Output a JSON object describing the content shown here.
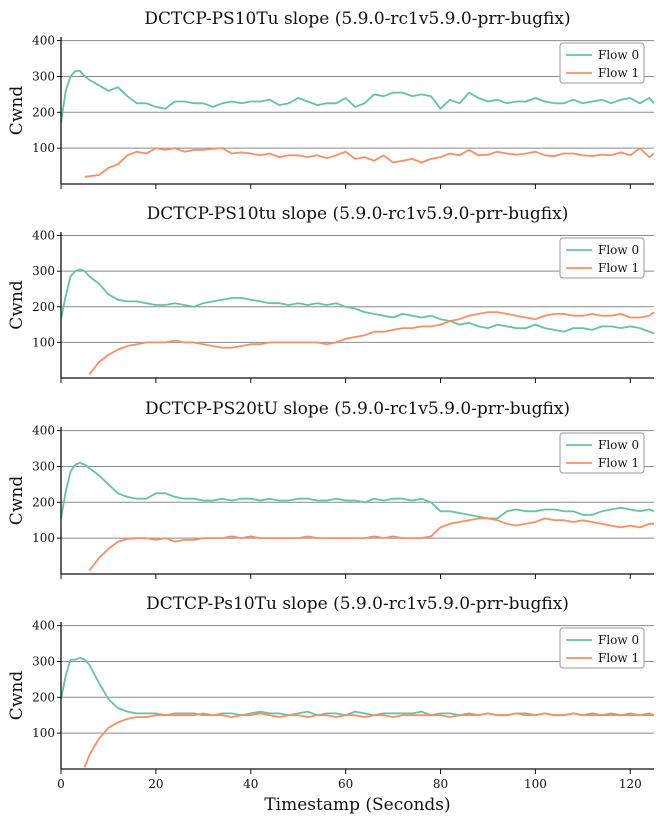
{
  "chart_data": [
    {
      "type": "line",
      "title": "DCTCP-PS10Tu slope (5.9.0-rc1v5.9.0-prr-bugfix)",
      "ylabel": "Cwnd",
      "xlim": [
        0,
        125
      ],
      "ylim": [
        0,
        410
      ],
      "yticks": [
        100,
        200,
        300,
        400
      ],
      "grid": "horizontal",
      "legend": "top-right",
      "series": [
        {
          "name": "Flow 0",
          "color": "#66c2a5",
          "x": [
            0,
            1,
            2,
            3,
            4,
            5,
            6,
            8,
            10,
            12,
            14,
            16,
            18,
            20,
            22,
            24,
            26,
            28,
            30,
            32,
            34,
            36,
            38,
            40,
            42,
            44,
            46,
            48,
            50,
            52,
            54,
            56,
            58,
            60,
            62,
            64,
            66,
            68,
            70,
            72,
            74,
            76,
            78,
            80,
            82,
            84,
            86,
            88,
            90,
            92,
            94,
            96,
            98,
            100,
            102,
            104,
            106,
            108,
            110,
            112,
            114,
            116,
            118,
            120,
            122,
            124,
            125
          ],
          "y": [
            170,
            260,
            300,
            315,
            316,
            300,
            290,
            275,
            260,
            270,
            245,
            225,
            225,
            215,
            210,
            230,
            230,
            225,
            225,
            215,
            225,
            230,
            225,
            230,
            230,
            235,
            220,
            225,
            240,
            230,
            220,
            225,
            225,
            240,
            215,
            225,
            250,
            245,
            255,
            255,
            245,
            250,
            245,
            210,
            235,
            225,
            255,
            240,
            230,
            235,
            225,
            230,
            230,
            240,
            230,
            225,
            225,
            235,
            225,
            230,
            235,
            225,
            235,
            240,
            225,
            240,
            225
          ]
        },
        {
          "name": "Flow 1",
          "color": "#fc8d62",
          "x": [
            5,
            8,
            10,
            12,
            14,
            16,
            18,
            20,
            22,
            24,
            26,
            28,
            30,
            32,
            34,
            36,
            38,
            40,
            42,
            44,
            46,
            48,
            50,
            52,
            54,
            56,
            58,
            60,
            62,
            64,
            66,
            68,
            70,
            72,
            74,
            76,
            78,
            80,
            82,
            84,
            86,
            88,
            90,
            92,
            94,
            96,
            98,
            100,
            102,
            104,
            106,
            108,
            110,
            112,
            114,
            116,
            118,
            120,
            122,
            124,
            125
          ],
          "y": [
            20,
            25,
            45,
            55,
            80,
            90,
            85,
            100,
            95,
            100,
            90,
            95,
            95,
            98,
            100,
            85,
            88,
            85,
            80,
            85,
            75,
            80,
            80,
            75,
            80,
            72,
            80,
            90,
            70,
            75,
            65,
            80,
            60,
            65,
            70,
            60,
            70,
            75,
            85,
            80,
            95,
            80,
            82,
            90,
            85,
            82,
            85,
            90,
            80,
            78,
            85,
            85,
            80,
            78,
            82,
            80,
            88,
            80,
            100,
            75,
            85
          ]
        }
      ]
    },
    {
      "type": "line",
      "title": "DCTCP-PS10tu slope (5.9.0-rc1v5.9.0-prr-bugfix)",
      "ylabel": "Cwnd",
      "xlim": [
        0,
        125
      ],
      "ylim": [
        0,
        410
      ],
      "yticks": [
        100,
        200,
        300,
        400
      ],
      "grid": "horizontal",
      "legend": "top-right",
      "series": [
        {
          "name": "Flow 0",
          "color": "#66c2a5",
          "x": [
            0,
            1,
            2,
            3,
            4,
            5,
            6,
            8,
            10,
            12,
            14,
            16,
            18,
            20,
            22,
            24,
            26,
            28,
            30,
            32,
            34,
            36,
            38,
            40,
            42,
            44,
            46,
            48,
            50,
            52,
            54,
            56,
            58,
            60,
            62,
            64,
            66,
            68,
            70,
            72,
            74,
            76,
            78,
            80,
            82,
            84,
            86,
            88,
            90,
            92,
            94,
            96,
            98,
            100,
            102,
            104,
            106,
            108,
            110,
            112,
            114,
            116,
            118,
            120,
            122,
            124,
            125
          ],
          "y": [
            165,
            230,
            285,
            300,
            305,
            300,
            285,
            265,
            235,
            220,
            215,
            215,
            210,
            205,
            205,
            210,
            205,
            200,
            210,
            215,
            220,
            225,
            225,
            220,
            215,
            210,
            210,
            205,
            210,
            205,
            210,
            205,
            210,
            200,
            195,
            185,
            180,
            175,
            170,
            180,
            175,
            170,
            175,
            165,
            160,
            150,
            155,
            145,
            140,
            150,
            145,
            140,
            140,
            150,
            140,
            135,
            130,
            140,
            140,
            135,
            145,
            145,
            140,
            145,
            140,
            130,
            125
          ]
        },
        {
          "name": "Flow 1",
          "color": "#fc8d62",
          "x": [
            6,
            8,
            10,
            12,
            14,
            16,
            18,
            20,
            22,
            24,
            26,
            28,
            30,
            32,
            34,
            36,
            38,
            40,
            42,
            44,
            46,
            48,
            50,
            52,
            54,
            56,
            58,
            60,
            62,
            64,
            66,
            68,
            70,
            72,
            74,
            76,
            78,
            80,
            82,
            84,
            86,
            88,
            90,
            92,
            94,
            96,
            98,
            100,
            102,
            104,
            106,
            108,
            110,
            112,
            114,
            116,
            118,
            120,
            122,
            124,
            125
          ],
          "y": [
            10,
            45,
            65,
            80,
            90,
            95,
            100,
            100,
            100,
            105,
            100,
            100,
            95,
            90,
            85,
            85,
            90,
            95,
            95,
            100,
            100,
            100,
            100,
            100,
            100,
            95,
            100,
            110,
            115,
            120,
            130,
            130,
            135,
            140,
            140,
            145,
            145,
            150,
            160,
            165,
            175,
            180,
            185,
            185,
            180,
            175,
            170,
            165,
            175,
            180,
            180,
            175,
            175,
            180,
            175,
            175,
            180,
            170,
            170,
            175,
            185
          ]
        }
      ]
    },
    {
      "type": "line",
      "title": "DCTCP-PS20tU slope (5.9.0-rc1v5.9.0-prr-bugfix)",
      "ylabel": "Cwnd",
      "xlim": [
        0,
        125
      ],
      "ylim": [
        0,
        410
      ],
      "yticks": [
        100,
        200,
        300,
        400
      ],
      "grid": "horizontal",
      "legend": "top-right",
      "series": [
        {
          "name": "Flow 0",
          "color": "#66c2a5",
          "x": [
            0,
            1,
            2,
            3,
            4,
            5,
            6,
            8,
            10,
            12,
            14,
            16,
            18,
            20,
            22,
            24,
            26,
            28,
            30,
            32,
            34,
            36,
            38,
            40,
            42,
            44,
            46,
            48,
            50,
            52,
            54,
            56,
            58,
            60,
            62,
            64,
            66,
            68,
            70,
            72,
            74,
            76,
            78,
            80,
            82,
            84,
            86,
            88,
            90,
            92,
            94,
            96,
            98,
            100,
            102,
            104,
            106,
            108,
            110,
            112,
            114,
            116,
            118,
            120,
            122,
            124,
            125
          ],
          "y": [
            155,
            230,
            285,
            305,
            310,
            305,
            295,
            275,
            250,
            225,
            215,
            210,
            210,
            225,
            225,
            215,
            210,
            210,
            205,
            205,
            210,
            205,
            210,
            210,
            205,
            210,
            205,
            205,
            210,
            210,
            205,
            205,
            210,
            205,
            205,
            200,
            210,
            205,
            210,
            210,
            205,
            210,
            200,
            175,
            175,
            170,
            165,
            160,
            155,
            155,
            175,
            180,
            175,
            175,
            180,
            180,
            175,
            175,
            165,
            165,
            175,
            180,
            185,
            180,
            175,
            180,
            175
          ]
        },
        {
          "name": "Flow 1",
          "color": "#fc8d62",
          "x": [
            6,
            8,
            10,
            12,
            14,
            16,
            18,
            20,
            22,
            24,
            26,
            28,
            30,
            32,
            34,
            36,
            38,
            40,
            42,
            44,
            46,
            48,
            50,
            52,
            54,
            56,
            58,
            60,
            62,
            64,
            66,
            68,
            70,
            72,
            74,
            76,
            78,
            80,
            82,
            84,
            86,
            88,
            90,
            92,
            94,
            96,
            98,
            100,
            102,
            104,
            106,
            108,
            110,
            112,
            114,
            116,
            118,
            120,
            122,
            124,
            125
          ],
          "y": [
            10,
            45,
            70,
            90,
            98,
            100,
            100,
            95,
            100,
            90,
            95,
            95,
            100,
            100,
            100,
            105,
            100,
            105,
            100,
            100,
            100,
            100,
            100,
            105,
            100,
            100,
            100,
            100,
            100,
            100,
            105,
            100,
            105,
            100,
            100,
            100,
            105,
            130,
            140,
            145,
            150,
            155,
            155,
            150,
            140,
            135,
            140,
            145,
            155,
            150,
            150,
            145,
            150,
            145,
            140,
            135,
            130,
            135,
            130,
            140,
            140
          ]
        }
      ]
    },
    {
      "type": "line",
      "title": "DCTCP-Ps10Tu slope (5.9.0-rc1v5.9.0-prr-bugfix)",
      "ylabel": "Cwnd",
      "xlabel": "Timestamp (Seconds)",
      "xlim": [
        0,
        125
      ],
      "ylim": [
        0,
        410
      ],
      "xticks": [
        0,
        20,
        40,
        60,
        80,
        100,
        120
      ],
      "yticks": [
        100,
        200,
        300,
        400
      ],
      "grid": "horizontal",
      "legend": "top-right",
      "series": [
        {
          "name": "Flow 0",
          "color": "#66c2a5",
          "x": [
            0,
            1,
            2,
            3,
            4,
            5,
            6,
            8,
            10,
            12,
            14,
            16,
            18,
            20,
            22,
            24,
            26,
            28,
            30,
            32,
            34,
            36,
            38,
            40,
            42,
            44,
            46,
            48,
            50,
            52,
            54,
            56,
            58,
            60,
            62,
            64,
            66,
            68,
            70,
            72,
            74,
            76,
            78,
            80,
            82,
            84,
            86,
            88,
            90,
            92,
            94,
            96,
            98,
            100,
            102,
            104,
            106,
            108,
            110,
            112,
            114,
            116,
            118,
            120,
            122,
            124,
            125
          ],
          "y": [
            195,
            260,
            305,
            305,
            310,
            305,
            290,
            240,
            195,
            170,
            160,
            155,
            155,
            155,
            150,
            155,
            155,
            155,
            150,
            150,
            155,
            155,
            150,
            155,
            160,
            155,
            155,
            150,
            155,
            160,
            150,
            155,
            155,
            150,
            160,
            155,
            150,
            155,
            155,
            155,
            155,
            160,
            150,
            155,
            155,
            150,
            155,
            150,
            155,
            150,
            150,
            155,
            155,
            150,
            155,
            150,
            150,
            155,
            150,
            155,
            150,
            155,
            150,
            155,
            150,
            155,
            150
          ]
        },
        {
          "name": "Flow 1",
          "color": "#fc8d62",
          "x": [
            5,
            6,
            8,
            10,
            12,
            14,
            16,
            18,
            20,
            22,
            24,
            26,
            28,
            30,
            32,
            34,
            36,
            38,
            40,
            42,
            44,
            46,
            48,
            50,
            52,
            54,
            56,
            58,
            60,
            62,
            64,
            66,
            68,
            70,
            72,
            74,
            76,
            78,
            80,
            82,
            84,
            86,
            88,
            90,
            92,
            94,
            96,
            98,
            100,
            102,
            104,
            106,
            108,
            110,
            112,
            114,
            116,
            118,
            120,
            122,
            124,
            125
          ],
          "y": [
            5,
            40,
            85,
            115,
            130,
            140,
            145,
            145,
            150,
            150,
            150,
            150,
            150,
            155,
            150,
            150,
            145,
            150,
            150,
            155,
            150,
            145,
            150,
            150,
            145,
            150,
            150,
            145,
            150,
            150,
            145,
            150,
            150,
            145,
            150,
            150,
            150,
            150,
            150,
            145,
            150,
            150,
            150,
            155,
            150,
            150,
            155,
            150,
            150,
            155,
            150,
            150,
            155,
            150,
            150,
            150,
            150,
            150,
            150,
            150,
            150,
            150
          ]
        }
      ]
    }
  ]
}
